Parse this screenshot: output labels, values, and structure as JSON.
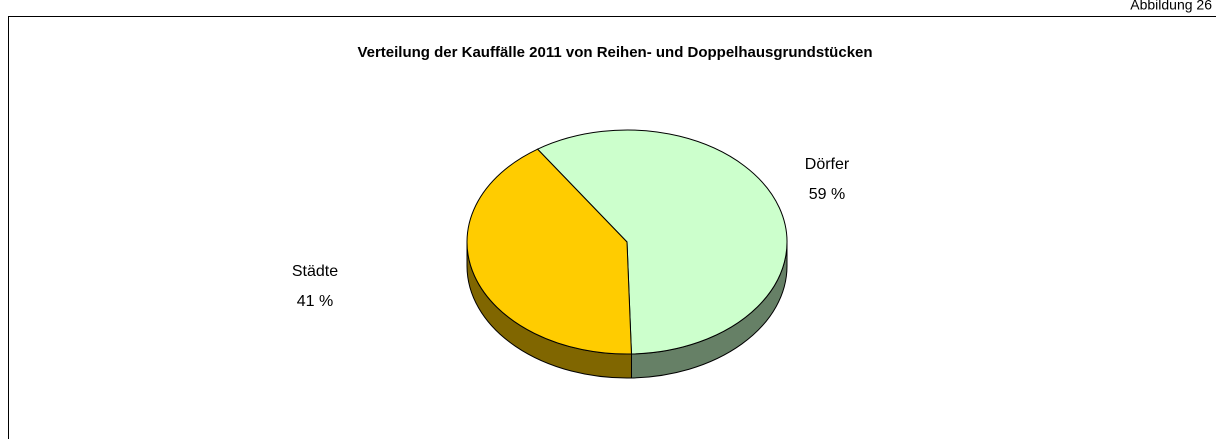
{
  "figure_label": "Abbildung 26",
  "chart_data": {
    "type": "pie",
    "title": "Verteilung der Kauffälle 2011 von Reihen- und Doppelhausgrundstücken",
    "categories": [
      "Städte",
      "Dörfer"
    ],
    "values": [
      41,
      59
    ],
    "value_labels": [
      "41 %",
      "59 %"
    ],
    "colors": [
      "#ffcc00",
      "#ccffcc"
    ],
    "side_colors": [
      "#806600",
      "#668066"
    ]
  }
}
